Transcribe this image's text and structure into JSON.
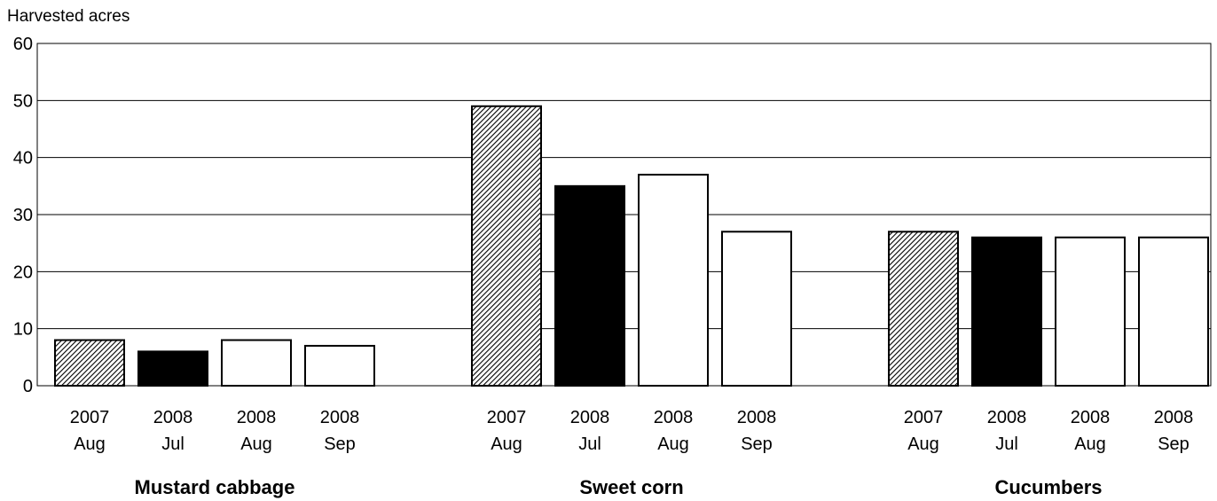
{
  "chart_data": {
    "type": "bar",
    "ylabel": "Harvested acres",
    "ylim": [
      0,
      60
    ],
    "yticks": [
      0,
      10,
      20,
      30,
      40,
      50,
      60
    ],
    "grid": true,
    "bar_labels": [
      {
        "year": "2007",
        "month": "Aug"
      },
      {
        "year": "2008",
        "month": "Jul"
      },
      {
        "year": "2008",
        "month": "Aug"
      },
      {
        "year": "2008",
        "month": "Sep"
      }
    ],
    "bar_styles": [
      "hatched",
      "black",
      "white",
      "white"
    ],
    "groups": [
      {
        "name": "Mustard cabbage",
        "values": [
          8,
          6,
          8,
          7
        ]
      },
      {
        "name": "Sweet corn",
        "values": [
          49,
          35,
          37,
          27
        ]
      },
      {
        "name": "Cucumbers",
        "values": [
          27,
          26,
          26,
          26
        ]
      }
    ]
  }
}
